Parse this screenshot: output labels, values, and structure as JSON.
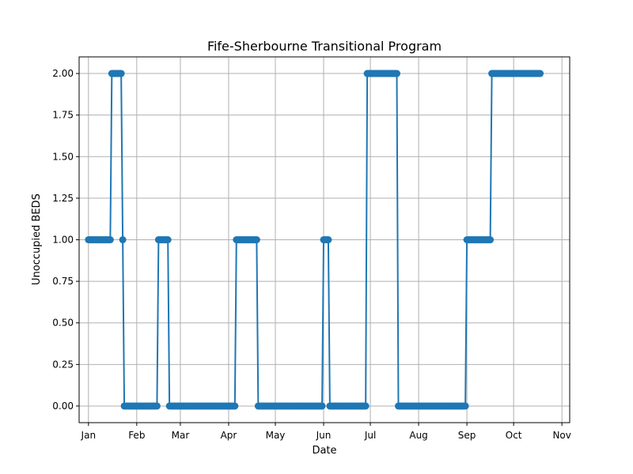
{
  "chart_data": {
    "type": "line",
    "title": "Fife-Sherbourne Transitional Program",
    "xlabel": "Date",
    "ylabel": "Unoccupied BEDS",
    "grid": true,
    "marker": "circle",
    "color": "#1f77b4",
    "x_range": [
      "2021-12-26",
      "2022-11-06"
    ],
    "ylim": [
      -0.1,
      2.1
    ],
    "x_ticks": [
      {
        "date": "2022-01-01",
        "label": "Jan"
      },
      {
        "date": "2022-02-01",
        "label": "Feb"
      },
      {
        "date": "2022-03-01",
        "label": "Mar"
      },
      {
        "date": "2022-04-01",
        "label": "Apr"
      },
      {
        "date": "2022-05-01",
        "label": "May"
      },
      {
        "date": "2022-06-01",
        "label": "Jun"
      },
      {
        "date": "2022-07-01",
        "label": "Jul"
      },
      {
        "date": "2022-08-01",
        "label": "Aug"
      },
      {
        "date": "2022-09-01",
        "label": "Sep"
      },
      {
        "date": "2022-10-01",
        "label": "Oct"
      },
      {
        "date": "2022-11-01",
        "label": "Nov"
      }
    ],
    "y_ticks": [
      {
        "value": 0.0,
        "label": "0.00"
      },
      {
        "value": 0.25,
        "label": "0.25"
      },
      {
        "value": 0.5,
        "label": "0.50"
      },
      {
        "value": 0.75,
        "label": "0.75"
      },
      {
        "value": 1.0,
        "label": "1.00"
      },
      {
        "value": 1.25,
        "label": "1.25"
      },
      {
        "value": 1.5,
        "label": "1.50"
      },
      {
        "value": 1.75,
        "label": "1.75"
      },
      {
        "value": 2.0,
        "label": "2.00"
      }
    ],
    "segments": [
      {
        "start": "2022-01-01",
        "end": "2022-01-15",
        "value": 1
      },
      {
        "start": "2022-01-16",
        "end": "2022-01-22",
        "value": 2
      },
      {
        "start": "2022-01-23",
        "end": "2022-01-23",
        "value": 1
      },
      {
        "start": "2022-01-24",
        "end": "2022-02-14",
        "value": 0
      },
      {
        "start": "2022-02-15",
        "end": "2022-02-21",
        "value": 1
      },
      {
        "start": "2022-02-22",
        "end": "2022-04-05",
        "value": 0
      },
      {
        "start": "2022-04-06",
        "end": "2022-04-19",
        "value": 1
      },
      {
        "start": "2022-04-20",
        "end": "2022-05-31",
        "value": 0
      },
      {
        "start": "2022-06-01",
        "end": "2022-06-04",
        "value": 1
      },
      {
        "start": "2022-06-05",
        "end": "2022-06-28",
        "value": 0
      },
      {
        "start": "2022-06-29",
        "end": "2022-07-18",
        "value": 2
      },
      {
        "start": "2022-07-19",
        "end": "2022-08-31",
        "value": 0
      },
      {
        "start": "2022-09-01",
        "end": "2022-09-16",
        "value": 1
      },
      {
        "start": "2022-09-17",
        "end": "2022-10-18",
        "value": 2
      }
    ]
  }
}
